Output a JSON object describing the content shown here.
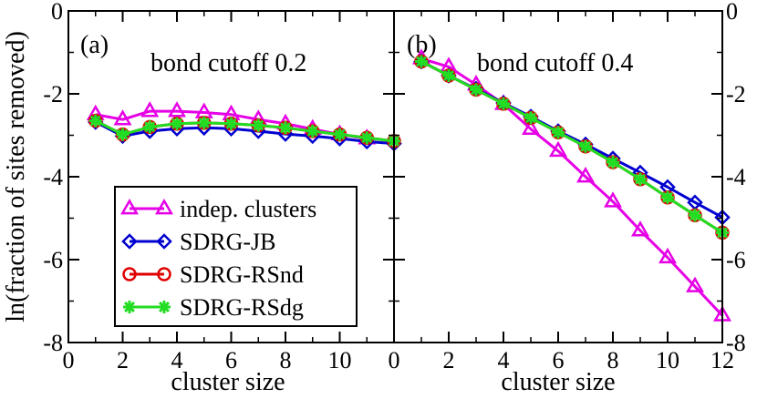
{
  "chart_data": [
    {
      "type": "line",
      "panel_label": "(a)",
      "title": "bond cutoff 0.2",
      "xlabel": "cluster size",
      "ylabel": "ln(fraction of sites removed)",
      "xlim": [
        0,
        12
      ],
      "ylim": [
        -8,
        0
      ],
      "x_ticks": [
        "0",
        "2",
        "4",
        "6",
        "8",
        "10"
      ],
      "y_ticks": [
        "0",
        "-2",
        "-4",
        "-6",
        "-8"
      ],
      "grid": false,
      "legend_position": "bottom-left",
      "series": [
        {
          "name": "indep. clusters",
          "color": "#e600e6",
          "marker": "triangle",
          "x": [
            1,
            2,
            3,
            4,
            5,
            6,
            7,
            8,
            9,
            10,
            11
          ],
          "y": [
            -2.5,
            -2.62,
            -2.42,
            -2.42,
            -2.45,
            -2.5,
            -2.62,
            -2.72,
            -2.85,
            -2.98,
            -3.08
          ]
        },
        {
          "name": "SDRG-JB",
          "color": "#0000d0",
          "marker": "diamond",
          "x": [
            1,
            2,
            3,
            4,
            5,
            6,
            7,
            8,
            9,
            10,
            11,
            12
          ],
          "y": [
            -2.68,
            -3.02,
            -2.9,
            -2.84,
            -2.82,
            -2.84,
            -2.9,
            -2.97,
            -3.02,
            -3.08,
            -3.15,
            -3.2
          ]
        },
        {
          "name": "SDRG-RSnd",
          "color": "#e00000",
          "marker": "circle",
          "x": [
            1,
            2,
            3,
            4,
            5,
            6,
            7,
            8,
            9,
            10,
            11,
            12
          ],
          "y": [
            -2.65,
            -2.98,
            -2.8,
            -2.72,
            -2.7,
            -2.72,
            -2.76,
            -2.82,
            -2.9,
            -2.98,
            -3.06,
            -3.14
          ]
        },
        {
          "name": "SDRG-RSdg",
          "color": "#22dd22",
          "marker": "star",
          "x": [
            1,
            2,
            3,
            4,
            5,
            6,
            7,
            8,
            9,
            10,
            11,
            12
          ],
          "y": [
            -2.65,
            -2.98,
            -2.8,
            -2.72,
            -2.7,
            -2.72,
            -2.76,
            -2.82,
            -2.9,
            -2.98,
            -3.06,
            -3.14
          ]
        }
      ]
    },
    {
      "type": "line",
      "panel_label": "(b)",
      "title": "bond cutoff 0.4",
      "xlabel": "cluster size",
      "ylabel": "",
      "xlim": [
        0,
        12
      ],
      "ylim": [
        -8,
        0
      ],
      "x_ticks": [
        "0",
        "2",
        "4",
        "6",
        "8",
        "10",
        "12"
      ],
      "y_ticks": [
        "0",
        "-2",
        "-4",
        "-6",
        "-8"
      ],
      "grid": false,
      "series": [
        {
          "name": "indep. clusters",
          "color": "#e600e6",
          "marker": "triangle",
          "x": [
            1,
            2,
            3,
            4,
            5,
            6,
            7,
            8,
            9,
            10,
            11,
            12
          ],
          "y": [
            -1.15,
            -1.35,
            -1.78,
            -2.25,
            -2.85,
            -3.38,
            -4.0,
            -4.6,
            -5.3,
            -5.95,
            -6.65,
            -7.35
          ]
        },
        {
          "name": "SDRG-JB",
          "color": "#0000d0",
          "marker": "diamond",
          "x": [
            1,
            2,
            3,
            4,
            5,
            6,
            7,
            8,
            9,
            10,
            11,
            12
          ],
          "y": [
            -1.22,
            -1.56,
            -1.88,
            -2.22,
            -2.55,
            -2.9,
            -3.22,
            -3.56,
            -3.9,
            -4.25,
            -4.62,
            -4.98
          ]
        },
        {
          "name": "SDRG-RSnd",
          "color": "#e00000",
          "marker": "circle",
          "x": [
            1,
            2,
            3,
            4,
            5,
            6,
            7,
            8,
            9,
            10,
            11,
            12
          ],
          "y": [
            -1.22,
            -1.56,
            -1.9,
            -2.24,
            -2.58,
            -2.93,
            -3.27,
            -3.65,
            -4.06,
            -4.5,
            -4.93,
            -5.35
          ]
        },
        {
          "name": "SDRG-RSdg",
          "color": "#22dd22",
          "marker": "star",
          "x": [
            1,
            2,
            3,
            4,
            5,
            6,
            7,
            8,
            9,
            10,
            11,
            12
          ],
          "y": [
            -1.22,
            -1.56,
            -1.9,
            -2.24,
            -2.58,
            -2.93,
            -3.27,
            -3.65,
            -4.06,
            -4.5,
            -4.93,
            -5.35
          ]
        }
      ]
    }
  ]
}
